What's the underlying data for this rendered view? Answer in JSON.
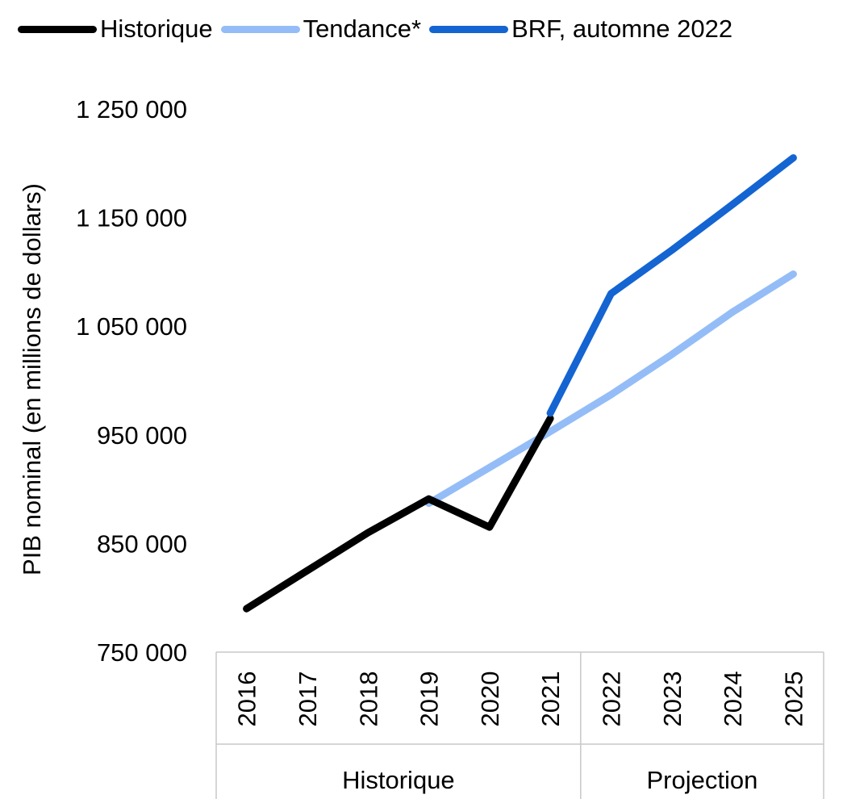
{
  "chart_data": {
    "type": "line",
    "ylabel": "PIB nominal (en millions de dollars)",
    "ylim": [
      750000,
      1250000
    ],
    "yticks": [
      750000,
      850000,
      950000,
      1050000,
      1150000,
      1250000
    ],
    "ytick_labels": [
      "750 000",
      "850 000",
      "950 000",
      "1 050 000",
      "1 150 000",
      "1 250 000"
    ],
    "categories": [
      "2016",
      "2017",
      "2018",
      "2019",
      "2020",
      "2021",
      "2022",
      "2023",
      "2024",
      "2025"
    ],
    "groups": [
      {
        "label": "Historique",
        "categories": [
          "2016",
          "2017",
          "2018",
          "2019",
          "2020",
          "2021"
        ]
      },
      {
        "label": "Projection",
        "categories": [
          "2022",
          "2023",
          "2024",
          "2025"
        ]
      }
    ],
    "legend_position": "top",
    "grid": false,
    "series": [
      {
        "name": "Historique",
        "color": "#000000",
        "x": [
          "2016",
          "2017",
          "2018",
          "2019",
          "2020",
          "2021"
        ],
        "values": [
          790000,
          825000,
          860000,
          891000,
          865000,
          965000
        ]
      },
      {
        "name": "Tendance*",
        "color": "#94bdf7",
        "x": [
          "2019",
          "2020",
          "2021",
          "2022",
          "2023",
          "2024",
          "2025"
        ],
        "values": [
          887000,
          920000,
          953000,
          987000,
          1024000,
          1063000,
          1098000
        ]
      },
      {
        "name": "BRF, automne 2022",
        "color": "#1464d2",
        "x": [
          "2021",
          "2022",
          "2023",
          "2024",
          "2025"
        ],
        "values": [
          970000,
          1080000,
          1120000,
          1162000,
          1205000
        ]
      }
    ]
  }
}
